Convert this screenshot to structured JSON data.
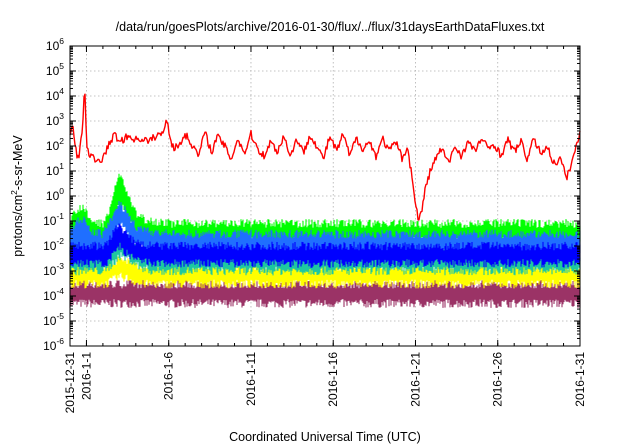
{
  "chart_data": {
    "type": "line",
    "title": "/data/run/goesPlots/archive/2016-01-30/flux/../flux/31daysEarthDataFluxes.txt",
    "xlabel": "Coordinated Universal Time (UTC)",
    "ylabel_parts": {
      "pre": "protons/cm",
      "sup": "2",
      "post": "-s-sr-MeV"
    },
    "x_range": [
      "2015-12-31",
      "2016-01-31"
    ],
    "x_ticks": [
      {
        "label": "2015-12-31",
        "day": 0
      },
      {
        "label": "2016-1-1",
        "day": 1
      },
      {
        "label": "2016-1-6",
        "day": 6
      },
      {
        "label": "2016-1-11",
        "day": 11
      },
      {
        "label": "2016-1-16",
        "day": 16
      },
      {
        "label": "2016-1-21",
        "day": 21
      },
      {
        "label": "2016-1-26",
        "day": 26
      },
      {
        "label": "2016-1-31",
        "day": 31
      }
    ],
    "y_scale": "log",
    "y_range": [
      1e-06,
      1000000.0
    ],
    "y_ticks": [
      {
        "base": "10",
        "exp": "-6",
        "value": 1e-06
      },
      {
        "base": "10",
        "exp": "-5",
        "value": 1e-05
      },
      {
        "base": "10",
        "exp": "-4",
        "value": 0.0001
      },
      {
        "base": "10",
        "exp": "-3",
        "value": 0.001
      },
      {
        "base": "10",
        "exp": "-2",
        "value": 0.01
      },
      {
        "base": "10",
        "exp": "-1",
        "value": 0.1
      },
      {
        "base": "10",
        "exp": "0",
        "value": 1
      },
      {
        "base": "10",
        "exp": "1",
        "value": 10
      },
      {
        "base": "10",
        "exp": "2",
        "value": 100
      },
      {
        "base": "10",
        "exp": "3",
        "value": 1000
      },
      {
        "base": "10",
        "exp": "4",
        "value": 10000
      },
      {
        "base": "10",
        "exp": "5",
        "value": 100000
      },
      {
        "base": "10",
        "exp": "6",
        "value": 1000000
      }
    ],
    "grid": true,
    "legend": "none",
    "series": [
      {
        "color": "#9b3366",
        "style": "band",
        "day": [
          0,
          31
        ],
        "low": [
          5e-05,
          5e-05
        ],
        "high": [
          0.0003,
          0.0003
        ]
      },
      {
        "color": "#ffff00",
        "style": "band",
        "day": [
          0,
          2.2,
          2.5,
          3.0,
          3.6,
          4.2,
          5,
          31
        ],
        "low": [
          0.0003,
          0.0003,
          0.0004,
          0.0006,
          0.0005,
          0.0003,
          0.0003,
          0.0003
        ],
        "high": [
          0.0015,
          0.0015,
          0.002,
          0.003,
          0.0025,
          0.0018,
          0.0015,
          0.0015
        ]
      },
      {
        "color": "#1ec8a0",
        "style": "band",
        "day": [
          0,
          2.2,
          2.6,
          3.0,
          3.6,
          4.2,
          5,
          31
        ],
        "low": [
          0.001,
          0.001,
          0.002,
          0.004,
          0.003,
          0.0015,
          0.001,
          0.001
        ],
        "high": [
          0.005,
          0.005,
          0.01,
          0.02,
          0.015,
          0.008,
          0.005,
          0.005
        ]
      },
      {
        "color": "#00ff00",
        "style": "band",
        "day": [
          0,
          0.4,
          0.8,
          1.2,
          2.0,
          2.4,
          2.7,
          3.0,
          3.3,
          3.6,
          4.0,
          4.5,
          5.2,
          6,
          31
        ],
        "low": [
          0.02,
          0.03,
          0.03,
          0.015,
          0.015,
          0.03,
          0.1,
          0.5,
          0.3,
          0.1,
          0.04,
          0.025,
          0.02,
          0.015,
          0.015
        ],
        "high": [
          0.1,
          0.3,
          0.4,
          0.1,
          0.08,
          0.3,
          1.5,
          8,
          3,
          0.8,
          0.2,
          0.12,
          0.1,
          0.08,
          0.08
        ]
      },
      {
        "color": "#1f6fff",
        "style": "band",
        "day": [
          0,
          0.4,
          0.8,
          1.2,
          2.0,
          2.4,
          2.7,
          3.0,
          3.3,
          3.6,
          4.0,
          4.5,
          5.2,
          6,
          31
        ],
        "low": [
          0.006,
          0.008,
          0.008,
          0.005,
          0.005,
          0.008,
          0.02,
          0.08,
          0.05,
          0.02,
          0.01,
          0.008,
          0.006,
          0.005,
          0.005
        ],
        "high": [
          0.04,
          0.1,
          0.12,
          0.04,
          0.03,
          0.08,
          0.2,
          0.5,
          0.3,
          0.15,
          0.06,
          0.04,
          0.035,
          0.03,
          0.03
        ]
      },
      {
        "color": "#0000ff",
        "style": "band",
        "day": [
          0,
          2.2,
          2.6,
          3.0,
          3.3,
          3.6,
          4.2,
          5,
          31
        ],
        "low": [
          0.002,
          0.002,
          0.004,
          0.01,
          0.006,
          0.004,
          0.0025,
          0.002,
          0.002
        ],
        "high": [
          0.01,
          0.01,
          0.03,
          0.08,
          0.04,
          0.02,
          0.012,
          0.01,
          0.01
        ]
      },
      {
        "color": "#ff0000",
        "style": "line",
        "day": [
          0,
          0.15,
          0.3,
          0.5,
          0.7,
          0.9,
          1.0,
          1.2,
          1.5,
          1.8,
          2.1,
          2.4,
          2.7,
          3.0,
          3.3,
          3.6,
          4.0,
          4.4,
          4.8,
          5.2,
          5.6,
          5.9,
          6.1,
          6.3,
          6.6,
          7.0,
          7.4,
          7.8,
          8.2,
          8.6,
          9.0,
          9.4,
          9.8,
          10.2,
          10.6,
          11.0,
          11.4,
          11.8,
          12.2,
          12.6,
          13.0,
          13.4,
          13.8,
          14.2,
          14.6,
          15.0,
          15.4,
          15.8,
          16.2,
          16.6,
          17.0,
          17.4,
          17.8,
          18.2,
          18.6,
          19.0,
          19.4,
          19.8,
          20.2,
          20.5,
          20.8,
          21.0,
          21.2,
          21.4,
          21.6,
          21.9,
          22.2,
          22.6,
          23.0,
          23.4,
          23.8,
          24.2,
          24.6,
          25.0,
          25.4,
          25.8,
          26.2,
          26.6,
          27.0,
          27.4,
          27.8,
          28.2,
          28.6,
          29.0,
          29.4,
          29.8,
          30.2,
          30.6,
          31.0
        ],
        "y": [
          300,
          1000,
          100,
          30,
          200,
          20000,
          150,
          40,
          30,
          20,
          50,
          120,
          300,
          150,
          200,
          250,
          180,
          200,
          150,
          250,
          300,
          1200,
          200,
          80,
          100,
          300,
          120,
          40,
          350,
          60,
          250,
          100,
          30,
          200,
          50,
          300,
          80,
          40,
          150,
          60,
          250,
          40,
          200,
          50,
          300,
          100,
          30,
          250,
          60,
          300,
          40,
          200,
          80,
          150,
          40,
          200,
          60,
          150,
          30,
          100,
          5,
          0.5,
          0.1,
          0.3,
          2,
          10,
          30,
          80,
          20,
          100,
          40,
          150,
          60,
          200,
          80,
          120,
          40,
          180,
          60,
          150,
          30,
          200,
          50,
          100,
          20,
          30,
          5,
          40,
          300
        ]
      }
    ]
  }
}
